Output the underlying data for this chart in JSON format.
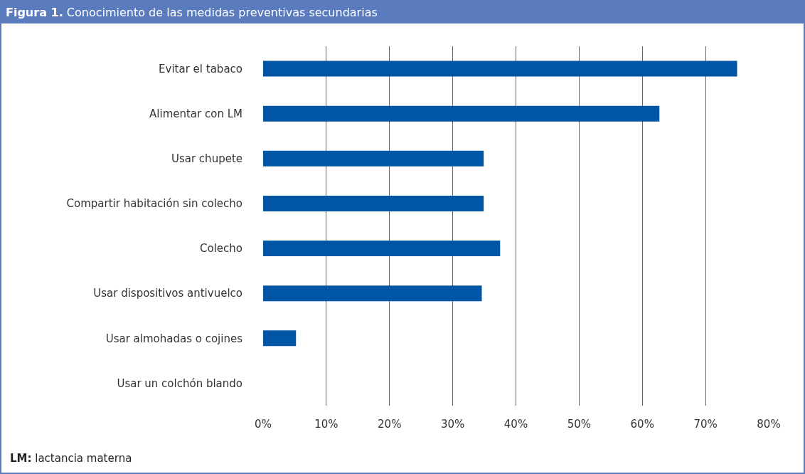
{
  "chart_data": {
    "type": "bar",
    "orientation": "horizontal",
    "title": "Figura 1. Conocimiento de las medidas preventivas secundarias",
    "categories": [
      "Evitar el tabaco",
      "Alimentar con LM",
      "Usar chupete",
      "Compartir habitación sin colecho",
      "Colecho",
      "Usar dispositivos antivuelco",
      "Usar almohadas o cojines",
      "Usar un colchón blando"
    ],
    "values": [
      75,
      62.7,
      34.9,
      34.9,
      37.5,
      34.6,
      5.2,
      0
    ],
    "color": "#0055a5",
    "xlim": [
      0,
      80
    ],
    "xticks": [
      {
        "value": 0,
        "label": "0%"
      },
      {
        "value": 10,
        "label": "10%"
      },
      {
        "value": 20,
        "label": "20%"
      },
      {
        "value": 30,
        "label": "30%"
      },
      {
        "value": 40,
        "label": "40%"
      },
      {
        "value": 50,
        "label": "50%"
      },
      {
        "value": 60,
        "label": "60%"
      },
      {
        "value": 70,
        "label": "70%"
      },
      {
        "value": 80,
        "label": "80%"
      }
    ],
    "grid": "x",
    "legend": false,
    "annotations": [
      "LM: lactancia materna"
    ]
  }
}
